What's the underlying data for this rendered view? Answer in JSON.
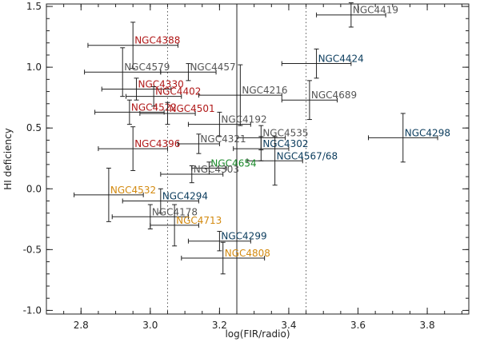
{
  "chart_data": {
    "type": "scatter",
    "title": "",
    "xlabel": "log(FIR/radio)",
    "ylabel": "HI deficiency",
    "xlim": [
      2.7,
      3.92
    ],
    "ylim": [
      -1.03,
      1.52
    ],
    "xticks": [
      "2.8",
      "3.0",
      "3.2",
      "3.4",
      "3.6",
      "3.8"
    ],
    "xtick_values": [
      2.8,
      3.0,
      3.2,
      3.4,
      3.6,
      3.8
    ],
    "yticks": [
      "-1.0",
      "-0.5",
      "0.0",
      "0.5",
      "1.0",
      "1.5"
    ],
    "ytick_values": [
      -1.0,
      -0.5,
      0.0,
      0.5,
      1.0,
      1.5
    ],
    "grid": false,
    "reference_lines": [
      {
        "x": 3.25,
        "style": "solid"
      },
      {
        "x": 3.05,
        "style": "dotted"
      },
      {
        "x": 3.45,
        "style": "dotted"
      }
    ],
    "colors": {
      "red": "#b01818",
      "blue": "#0b3c5d",
      "green": "#1a8a2a",
      "orange": "#d38a10",
      "gray": "#555555"
    },
    "points": [
      {
        "name": "NGC4419",
        "x": 3.58,
        "y": 1.43,
        "xerr": 0.1,
        "yerr": 0.1,
        "color": "gray"
      },
      {
        "name": "NGC4388",
        "x": 2.95,
        "y": 1.18,
        "xerr": 0.13,
        "yerr": 0.19,
        "color": "red"
      },
      {
        "name": "NGC4579",
        "x": 2.92,
        "y": 0.96,
        "xerr": 0.11,
        "yerr": 0.2,
        "color": "gray"
      },
      {
        "name": "NGC4457",
        "x": 3.11,
        "y": 0.96,
        "xerr": 0.08,
        "yerr": 0.07,
        "color": "gray"
      },
      {
        "name": "NGC4424",
        "x": 3.48,
        "y": 1.03,
        "xerr": 0.1,
        "yerr": 0.12,
        "color": "blue"
      },
      {
        "name": "NGC4330",
        "x": 2.96,
        "y": 0.82,
        "xerr": 0.1,
        "yerr": 0.09,
        "color": "red"
      },
      {
        "name": "NGC4402",
        "x": 3.01,
        "y": 0.76,
        "xerr": 0.08,
        "yerr": 0.08,
        "color": "red"
      },
      {
        "name": "NGC4216",
        "x": 3.26,
        "y": 0.77,
        "xerr": 0.12,
        "yerr": 0.25,
        "color": "gray"
      },
      {
        "name": "NGC4689",
        "x": 3.46,
        "y": 0.73,
        "xerr": 0.08,
        "yerr": 0.16,
        "color": "gray"
      },
      {
        "name": "NGC4522",
        "x": 2.94,
        "y": 0.63,
        "xerr": 0.1,
        "yerr": 0.1,
        "color": "red"
      },
      {
        "name": "NGC4501",
        "x": 3.05,
        "y": 0.62,
        "xerr": 0.08,
        "yerr": 0.09,
        "color": "red"
      },
      {
        "name": "NGC4192",
        "x": 3.2,
        "y": 0.53,
        "xerr": 0.09,
        "yerr": 0.1,
        "color": "gray"
      },
      {
        "name": "NGC4298",
        "x": 3.73,
        "y": 0.42,
        "xerr": 0.1,
        "yerr": 0.2,
        "color": "blue"
      },
      {
        "name": "NGC4535",
        "x": 3.32,
        "y": 0.42,
        "xerr": 0.07,
        "yerr": 0.1,
        "color": "gray"
      },
      {
        "name": "NGC4396",
        "x": 2.95,
        "y": 0.33,
        "xerr": 0.1,
        "yerr": 0.18,
        "color": "red"
      },
      {
        "name": "NGC4321",
        "x": 3.14,
        "y": 0.37,
        "xerr": 0.06,
        "yerr": 0.08,
        "color": "gray"
      },
      {
        "name": "NGC4302",
        "x": 3.32,
        "y": 0.33,
        "xerr": 0.08,
        "yerr": 0.1,
        "color": "blue"
      },
      {
        "name": "NGC4567/68",
        "x": 3.36,
        "y": 0.23,
        "xerr": 0.08,
        "yerr": 0.2,
        "color": "blue"
      },
      {
        "name": "NGC4654",
        "x": 3.17,
        "y": 0.17,
        "xerr": 0.05,
        "yerr": 0.05,
        "color": "green"
      },
      {
        "name": "NGC4303",
        "x": 3.12,
        "y": 0.12,
        "xerr": 0.09,
        "yerr": 0.07,
        "color": "gray"
      },
      {
        "name": "NGC4532",
        "x": 2.88,
        "y": -0.05,
        "xerr": 0.1,
        "yerr": 0.22,
        "color": "orange"
      },
      {
        "name": "NGC4294",
        "x": 3.03,
        "y": -0.1,
        "xerr": 0.11,
        "yerr": 0.1,
        "color": "blue"
      },
      {
        "name": "NGC4178",
        "x": 3.0,
        "y": -0.23,
        "xerr": 0.11,
        "yerr": 0.1,
        "color": "gray"
      },
      {
        "name": "NGC4713",
        "x": 3.07,
        "y": -0.3,
        "xerr": 0.07,
        "yerr": 0.17,
        "color": "orange"
      },
      {
        "name": "NGC4299",
        "x": 3.2,
        "y": -0.43,
        "xerr": 0.09,
        "yerr": 0.08,
        "color": "blue"
      },
      {
        "name": "NGC4808",
        "x": 3.21,
        "y": -0.57,
        "xerr": 0.12,
        "yerr": 0.13,
        "color": "orange"
      }
    ]
  }
}
